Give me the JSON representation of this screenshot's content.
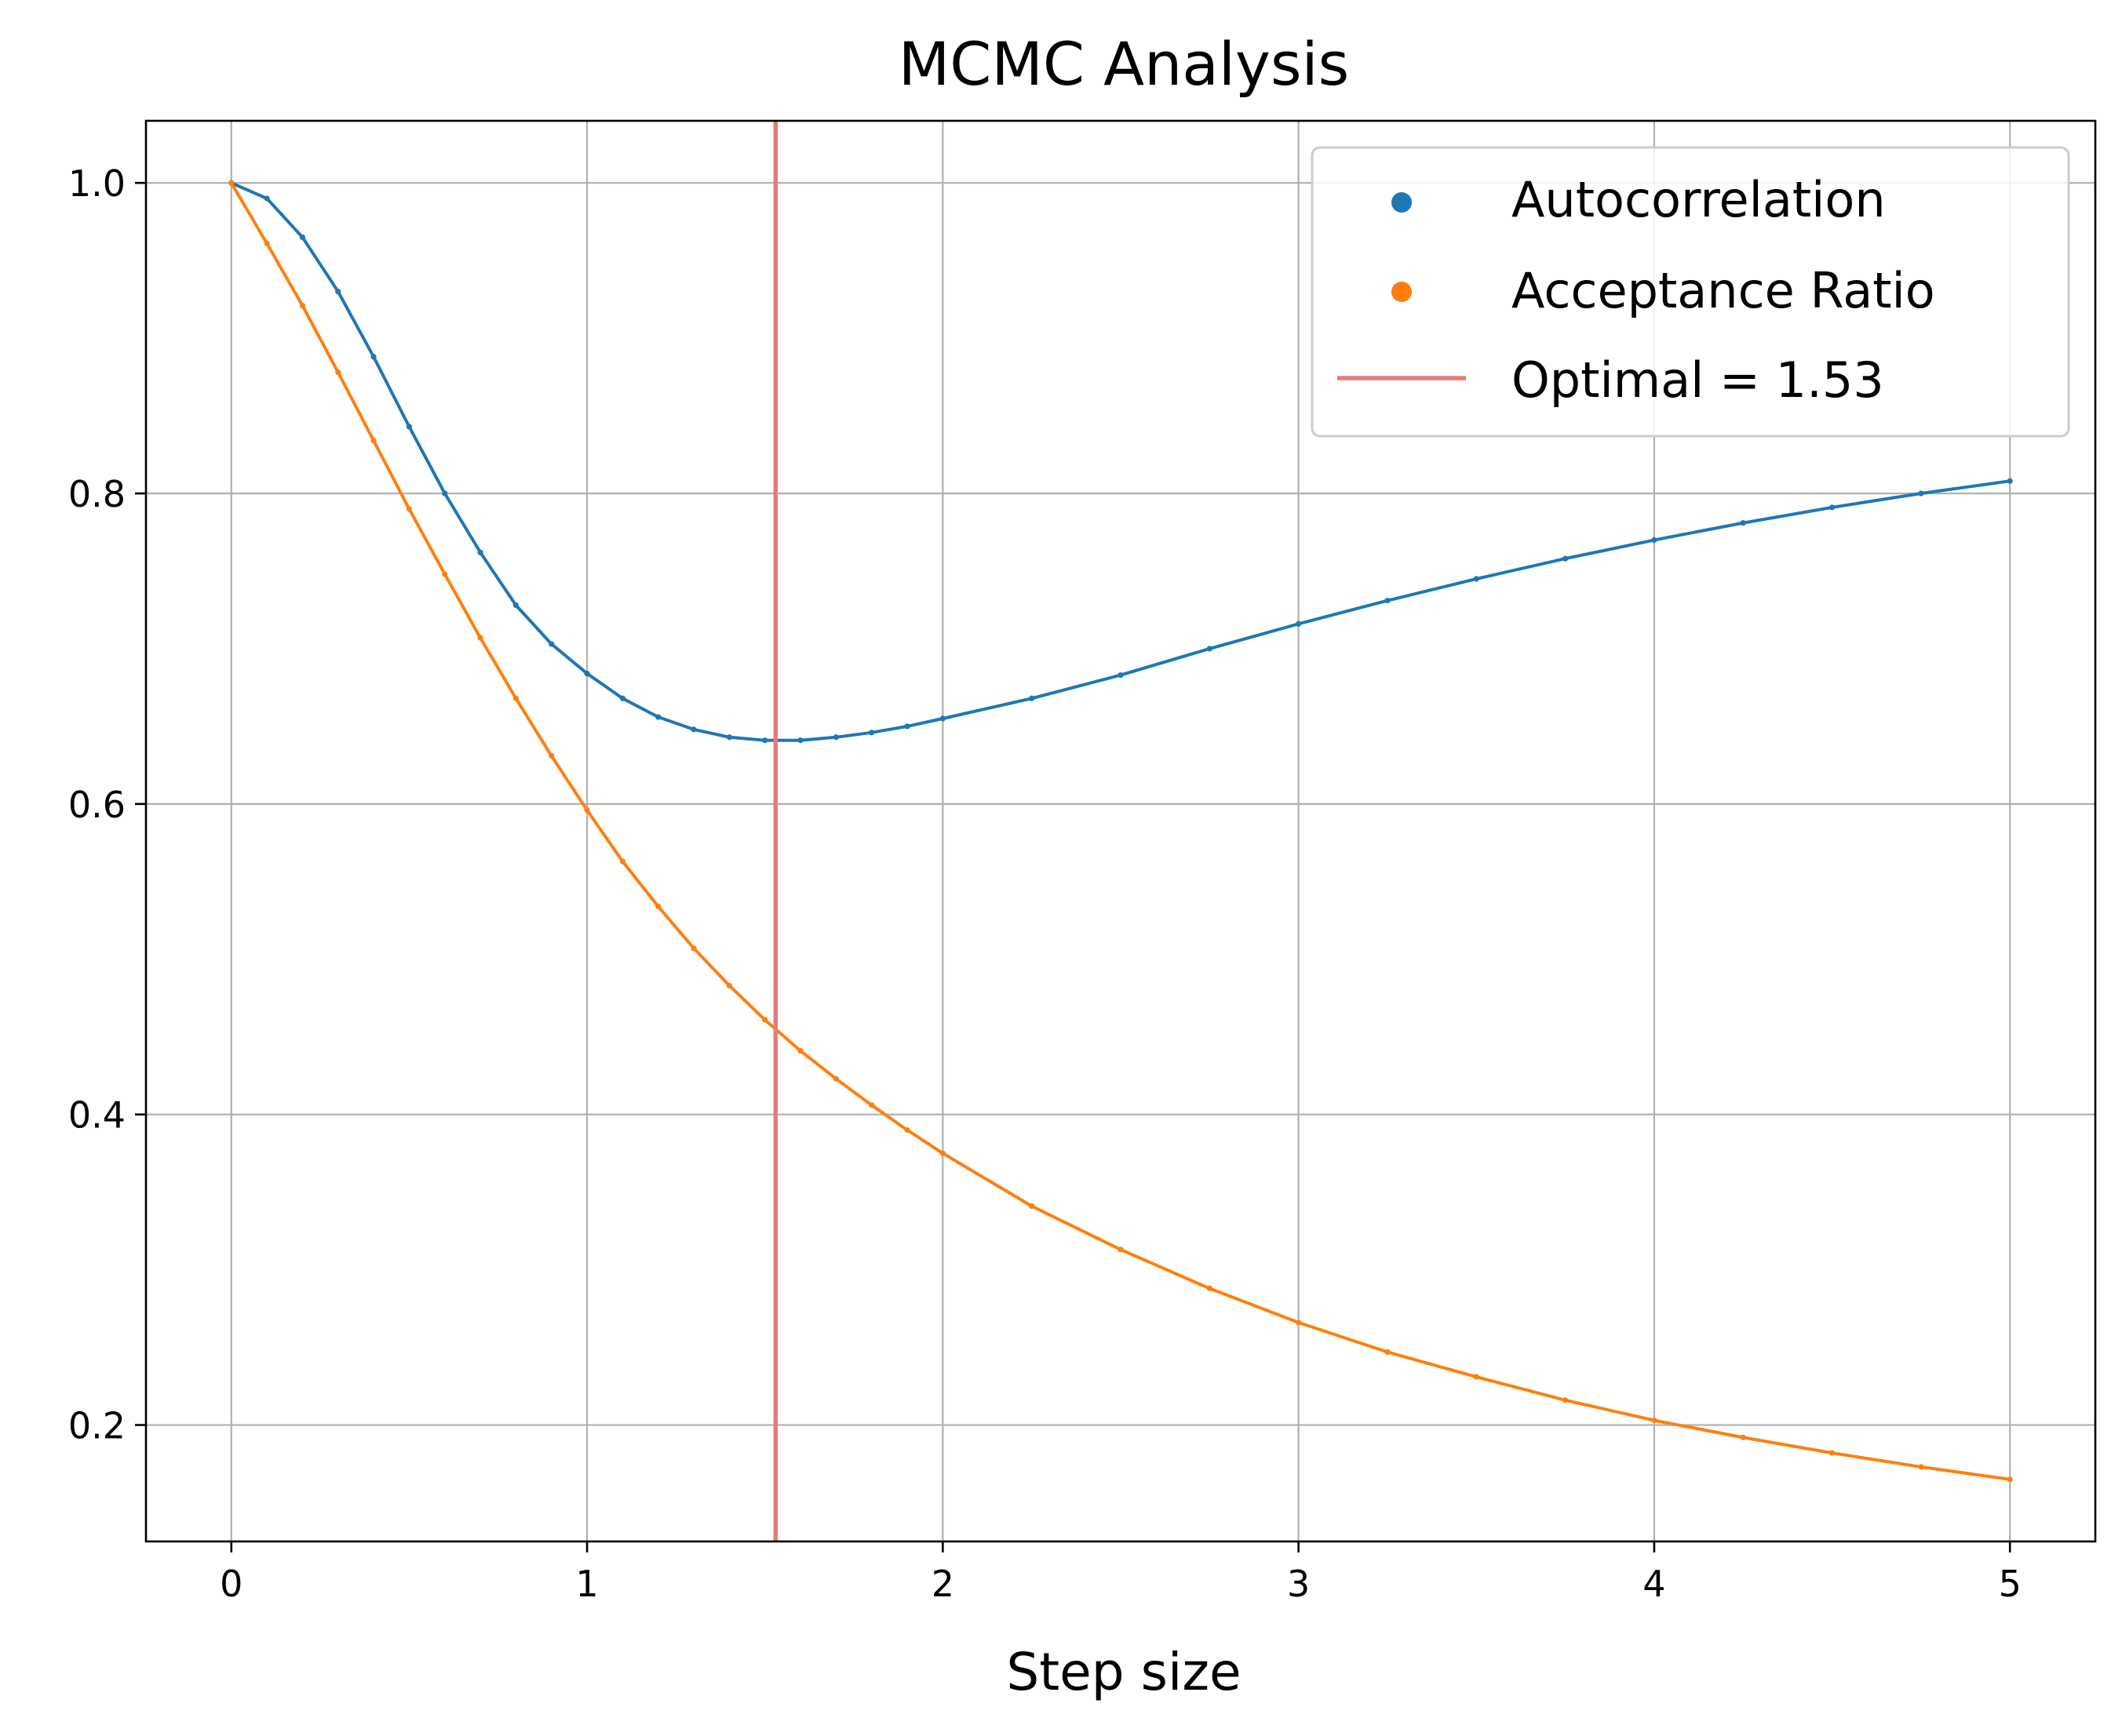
{
  "chart_data": {
    "type": "scatter",
    "title": "MCMC Analysis",
    "xlabel": "Step size",
    "ylabel": "",
    "xlim": [
      -0.24,
      5.24
    ],
    "ylim": [
      0.125,
      1.04
    ],
    "x_ticks": [
      0,
      1,
      2,
      3,
      4,
      5
    ],
    "y_ticks": [
      0.2,
      0.4,
      0.6,
      0.8,
      1.0
    ],
    "x_tick_labels": [
      "0",
      "1",
      "2",
      "3",
      "4",
      "5"
    ],
    "y_tick_labels": [
      "0.2",
      "0.4",
      "0.6",
      "0.8",
      "1.0"
    ],
    "grid": true,
    "legend_position": "top-right",
    "series": [
      {
        "name": "Autocorrelation",
        "color": "#1f77b4",
        "x": [
          0,
          0.1,
          0.2,
          0.3,
          0.4,
          0.5,
          0.6,
          0.7,
          0.8,
          0.9,
          1.0,
          1.1,
          1.2,
          1.3,
          1.4,
          1.5,
          1.6,
          1.7,
          1.8,
          1.9,
          2.0,
          2.25,
          2.5,
          2.75,
          3.0,
          3.25,
          3.5,
          3.75,
          4.0,
          4.25,
          4.5,
          4.75,
          5.0
        ],
        "y": [
          1.0,
          0.99,
          0.965,
          0.93,
          0.888,
          0.843,
          0.8,
          0.762,
          0.728,
          0.703,
          0.684,
          0.668,
          0.656,
          0.648,
          0.643,
          0.641,
          0.641,
          0.643,
          0.646,
          0.65,
          0.655,
          0.668,
          0.683,
          0.7,
          0.716,
          0.731,
          0.745,
          0.758,
          0.77,
          0.781,
          0.791,
          0.8,
          0.808
        ]
      },
      {
        "name": "Acceptance Ratio",
        "color": "#ff7f0e",
        "x": [
          0,
          0.1,
          0.2,
          0.3,
          0.4,
          0.5,
          0.6,
          0.7,
          0.8,
          0.9,
          1.0,
          1.1,
          1.2,
          1.3,
          1.4,
          1.5,
          1.6,
          1.7,
          1.8,
          1.9,
          2.0,
          2.25,
          2.5,
          2.75,
          3.0,
          3.25,
          3.5,
          3.75,
          4.0,
          4.25,
          4.5,
          4.75,
          5.0
        ],
        "y": [
          1.0,
          0.961,
          0.921,
          0.878,
          0.834,
          0.79,
          0.748,
          0.707,
          0.668,
          0.631,
          0.596,
          0.563,
          0.534,
          0.507,
          0.483,
          0.461,
          0.441,
          0.423,
          0.406,
          0.39,
          0.375,
          0.341,
          0.313,
          0.288,
          0.266,
          0.247,
          0.231,
          0.216,
          0.203,
          0.192,
          0.182,
          0.173,
          0.165
        ]
      }
    ],
    "vline": {
      "x": 1.53,
      "color": "#e87a7a",
      "label": "Optimal = 1.53"
    }
  }
}
